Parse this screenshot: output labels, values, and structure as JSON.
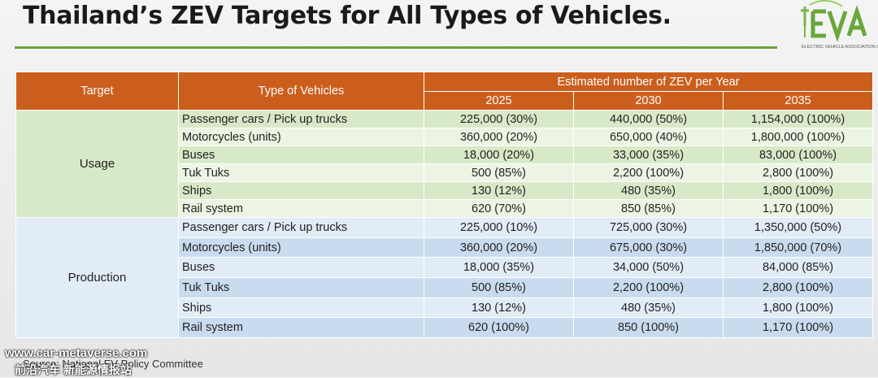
{
  "title": "Thailand’s ZEV Targets for All Types of Vehicles.",
  "logo": {
    "name": "evat-logo-icon",
    "caption": "ELECTRIC VEHICLE ASSOCIATION OF THAILAND"
  },
  "table": {
    "headers": {
      "target": "Target",
      "type": "Type of Vehicles",
      "estimated": "Estimated number of ZEV per Year",
      "years": [
        "2025",
        "2030",
        "2035"
      ]
    },
    "groups": [
      {
        "label": "Usage",
        "rows": [
          {
            "type": "Passenger cars / Pick up trucks",
            "values": [
              "225,000 (30%)",
              "440,000 (50%)",
              "1,154,000 (100%)"
            ]
          },
          {
            "type": "Motorcycles (units)",
            "values": [
              "360,000 (20%)",
              "650,000 (40%)",
              "1,800,000 (100%)"
            ]
          },
          {
            "type": "Buses",
            "values": [
              "18,000 (20%)",
              "33,000 (35%)",
              "83,000 (100%)"
            ]
          },
          {
            "type": "Tuk Tuks",
            "values": [
              "500 (85%)",
              "2,200 (100%)",
              "2,800 (100%)"
            ]
          },
          {
            "type": "Ships",
            "values": [
              "130 (12%)",
              "480 (35%)",
              "1,800 (100%)"
            ]
          },
          {
            "type": "Rail system",
            "values": [
              "620 (70%)",
              "850 (85%)",
              "1,170 (100%)"
            ]
          }
        ]
      },
      {
        "label": "Production",
        "rows": [
          {
            "type": "Passenger cars / Pick up trucks",
            "values": [
              "225,000 (10%)",
              "725,000 (30%)",
              "1,350,000 (50%)"
            ]
          },
          {
            "type": "Motorcycles (units)",
            "values": [
              "360,000 (20%)",
              "675,000 (30%)",
              "1,850,000 (70%)"
            ]
          },
          {
            "type": "Buses",
            "values": [
              "18,000 (35%)",
              "34,000 (50%)",
              "84,000 (85%)"
            ]
          },
          {
            "type": "Tuk Tuks",
            "values": [
              "500 (85%)",
              "2,200 (100%)",
              "2,800 (100%)"
            ]
          },
          {
            "type": "Ships",
            "values": [
              "130 (12%)",
              "480 (35%)",
              "1,800 (100%)"
            ]
          },
          {
            "type": "Rail system",
            "values": [
              "620 (100%)",
              "850 (100%)",
              "1,170 (100%)"
            ]
          }
        ]
      }
    ]
  },
  "source": "Source: National EV Policy Committee",
  "watermark": {
    "site": "www.car-metaverse.com",
    "cn": "前沿汽车 新能源情报站"
  },
  "colors": {
    "header_orange": "#cc5e1d",
    "usage_green": "#d8e9c8",
    "production_blue": "#c9dcef",
    "accent_green": "#6f9e3f"
  }
}
